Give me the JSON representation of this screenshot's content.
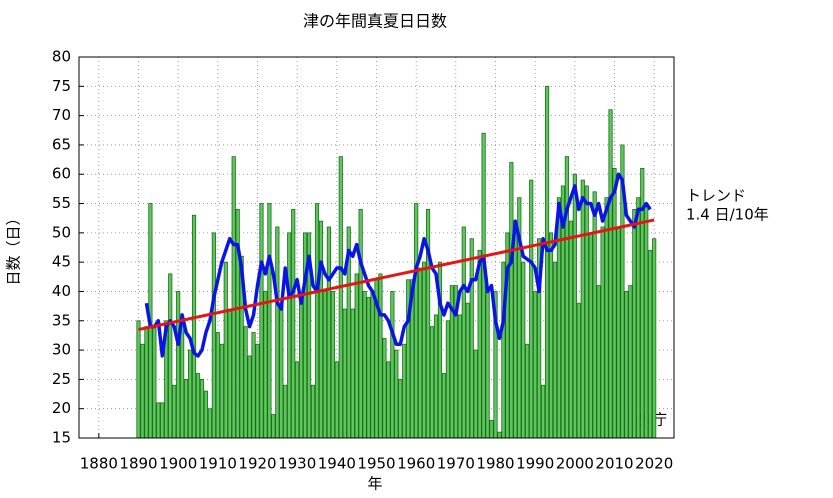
{
  "chart_data": {
    "type": "bar",
    "title": "津の年間真夏日日数",
    "x_label": "年",
    "y_label": "日数（日）",
    "xlim": [
      1875,
      2025
    ],
    "xticks": [
      1880,
      1890,
      1900,
      1910,
      1920,
      1930,
      1940,
      1950,
      1960,
      1970,
      1980,
      1990,
      2000,
      2010,
      2020
    ],
    "ylim": [
      15,
      80
    ],
    "yticks": [
      15,
      20,
      25,
      30,
      35,
      40,
      45,
      50,
      55,
      60,
      65,
      70,
      75,
      80
    ],
    "grid": true,
    "x": [
      1890,
      1891,
      1892,
      1893,
      1894,
      1895,
      1896,
      1897,
      1898,
      1899,
      1900,
      1901,
      1902,
      1903,
      1904,
      1905,
      1906,
      1907,
      1908,
      1909,
      1910,
      1911,
      1912,
      1913,
      1914,
      1915,
      1916,
      1917,
      1918,
      1919,
      1920,
      1921,
      1922,
      1923,
      1924,
      1925,
      1926,
      1927,
      1928,
      1929,
      1930,
      1931,
      1932,
      1933,
      1934,
      1935,
      1936,
      1937,
      1938,
      1939,
      1940,
      1941,
      1942,
      1943,
      1944,
      1945,
      1946,
      1947,
      1948,
      1949,
      1950,
      1951,
      1952,
      1953,
      1954,
      1955,
      1956,
      1957,
      1958,
      1959,
      1960,
      1961,
      1962,
      1963,
      1964,
      1965,
      1966,
      1967,
      1968,
      1969,
      1970,
      1971,
      1972,
      1973,
      1974,
      1975,
      1976,
      1977,
      1978,
      1979,
      1980,
      1981,
      1982,
      1983,
      1984,
      1985,
      1986,
      1987,
      1988,
      1989,
      1990,
      1991,
      1992,
      1993,
      1994,
      1995,
      1996,
      1997,
      1998,
      1999,
      2000,
      2001,
      2002,
      2003,
      2004,
      2005,
      2006,
      2007,
      2008,
      2009,
      2010,
      2011,
      2012,
      2013,
      2014,
      2015,
      2016,
      2017,
      2018,
      2019,
      2020
    ],
    "bars": {
      "color": "#5cc85c",
      "edge_color": "#1f6b1f",
      "values": [
        35,
        31,
        34,
        55,
        34,
        21,
        21,
        35,
        43,
        24,
        40,
        34,
        25,
        30,
        53,
        26,
        25,
        23,
        20,
        50,
        33,
        31,
        45,
        37,
        63,
        54,
        46,
        34,
        29,
        33,
        31,
        55,
        40,
        55,
        19,
        51,
        38,
        24,
        50,
        54,
        28,
        38,
        50,
        50,
        24,
        55,
        52,
        40,
        51,
        40,
        28,
        63,
        37,
        51,
        37,
        43,
        54,
        40,
        39,
        40,
        42,
        43,
        32,
        28,
        40,
        30,
        25,
        31,
        42,
        42,
        55,
        44,
        45,
        54,
        34,
        36,
        45,
        26,
        35,
        41,
        41,
        36,
        51,
        38,
        49,
        30,
        47,
        67,
        40,
        18,
        40,
        16,
        45,
        50,
        62,
        50,
        56,
        45,
        31,
        59,
        40,
        49,
        24,
        75,
        50,
        45,
        56,
        58,
        63,
        52,
        60,
        38,
        59,
        58,
        50,
        57,
        41,
        51,
        56,
        71,
        61,
        51,
        65,
        40,
        41,
        54,
        56,
        61,
        55,
        47,
        49
      ]
    },
    "moving_average": {
      "color": "#0a14e6",
      "values": [
        null,
        null,
        38,
        34,
        34,
        35,
        29,
        34,
        35,
        34,
        31,
        36,
        33,
        32,
        29.5,
        29,
        30,
        33,
        35,
        39,
        42,
        45,
        47,
        49,
        48,
        48,
        44,
        37,
        34,
        36,
        41,
        45,
        43,
        46,
        43,
        38,
        37,
        44,
        39,
        40,
        42,
        38,
        42,
        46,
        41,
        40,
        45,
        43,
        42,
        43,
        44,
        44,
        43,
        47,
        46,
        48,
        45,
        43,
        41,
        40,
        38,
        36,
        36,
        35,
        33,
        31,
        31,
        34,
        35,
        40,
        44,
        46,
        49,
        47,
        44,
        43,
        38,
        36,
        38,
        37,
        36,
        40,
        41,
        40,
        42,
        42,
        45,
        46,
        40,
        41,
        35,
        32,
        35,
        44,
        45,
        52,
        49,
        46,
        45.5,
        45,
        44,
        40,
        49,
        47,
        47,
        48,
        55,
        51,
        54,
        56,
        58,
        54,
        56,
        55,
        55,
        53,
        55,
        52,
        54,
        56,
        57,
        60,
        59,
        53,
        52,
        51,
        54,
        54,
        55,
        54,
        null
      ]
    },
    "trend": {
      "color": "#e61414",
      "x": [
        1890,
        2020
      ],
      "values": [
        33.5,
        52.2
      ]
    },
    "annotations": [
      "トレンド",
      "1.4 日/10年"
    ],
    "credit": "気象庁"
  }
}
